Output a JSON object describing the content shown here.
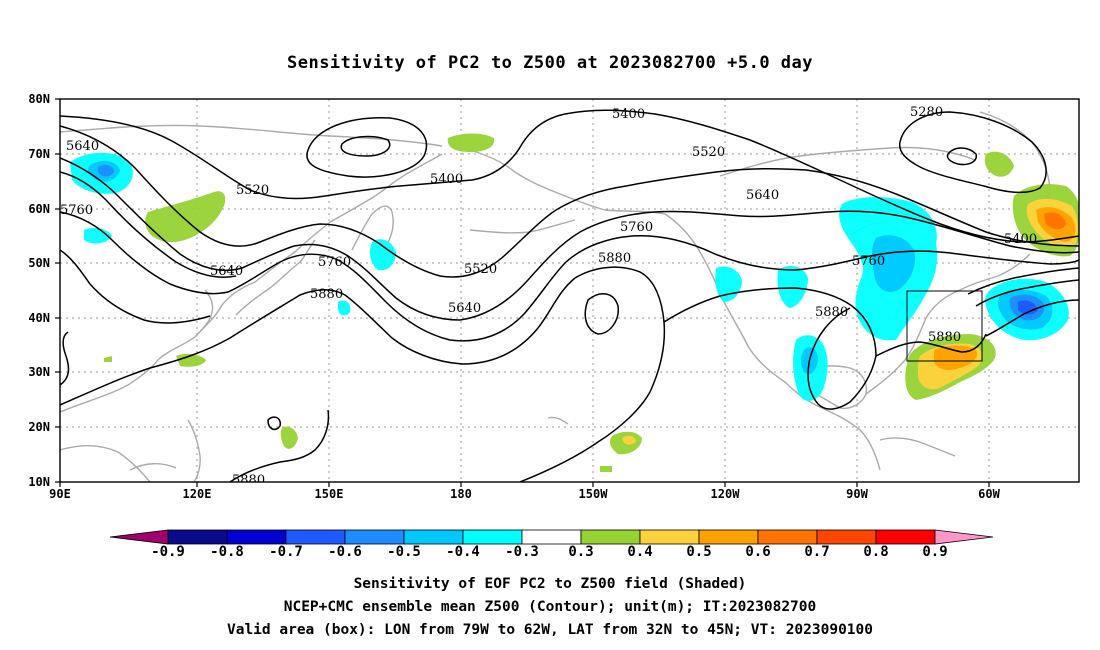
{
  "title": "Sensitivity of PC2 to Z500 at 2023082700 +5.0 day",
  "map": {
    "lon_ticks": [
      "90E",
      "120E",
      "150E",
      "180",
      "150W",
      "120W",
      "90W",
      "60W"
    ],
    "lat_ticks": [
      "10N",
      "20N",
      "30N",
      "40N",
      "50N",
      "60N",
      "70N",
      "80N"
    ],
    "contour_labels": [
      "5640",
      "5760",
      "5520",
      "5640",
      "5760",
      "5880",
      "5400",
      "5520",
      "5640",
      "5400",
      "5520",
      "5640",
      "5760",
      "5880",
      "5760",
      "5880",
      "5280",
      "5400",
      "5880",
      "5880"
    ],
    "valid_box": {
      "lon_from": "79W",
      "lon_to": "62W",
      "lat_from": "32N",
      "lat_to": "45N"
    }
  },
  "colorbar": {
    "colors": [
      "#a0006e",
      "#0a0a8c",
      "#0000d2",
      "#1e5aff",
      "#1e8cff",
      "#00c8ff",
      "#00ffff",
      "#ffffff",
      "#96d232",
      "#ffd23c",
      "#ffa000",
      "#ff7300",
      "#ff4600",
      "#ff0000",
      "#ff96c8"
    ],
    "labels": [
      "-0.9",
      "-0.8",
      "-0.7",
      "-0.6",
      "-0.5",
      "-0.4",
      "-0.3",
      "0.3",
      "0.4",
      "0.5",
      "0.6",
      "0.7",
      "0.8",
      "0.9"
    ]
  },
  "caption": {
    "line1": "Sensitivity of EOF PC2 to Z500 field (Shaded)",
    "line2": "NCEP+CMC ensemble mean Z500 (Contour); unit(m); IT:2023082700",
    "line3": "Valid area (box): LON from 79W to 62W, LAT from 32N to 45N; VT: 2023090100"
  }
}
